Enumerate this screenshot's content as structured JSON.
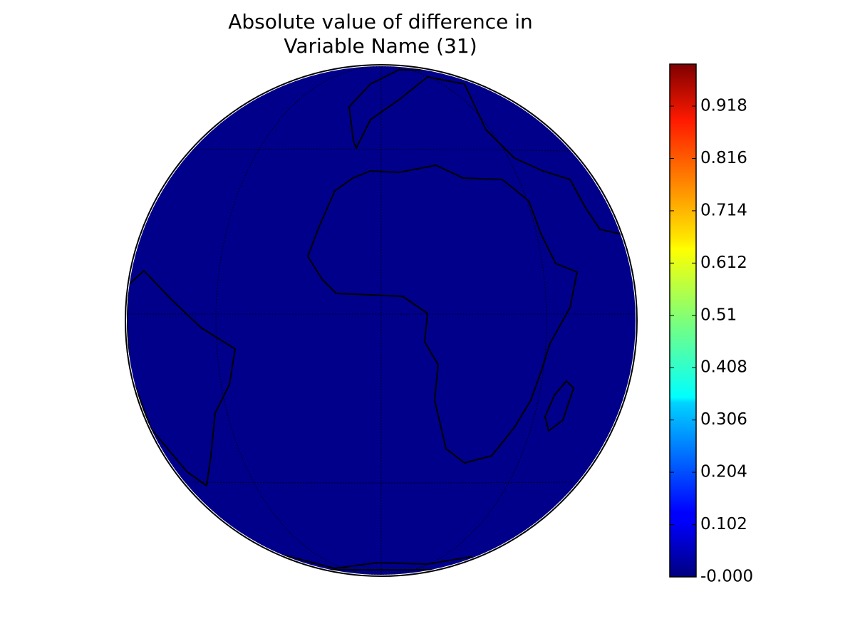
{
  "map": {
    "title": [
      "Absolute value of difference in",
      "Variable Name (31)"
    ],
    "colorbar": {
      "lim": [
        0,
        1.0
      ],
      "ticks": [
        {
          "value": 0,
          "label": "-0.000"
        },
        0.102,
        0.204,
        0.306,
        0.408,
        0.51,
        0.612,
        0.714,
        0.816,
        0.918
      ]
    }
  }
}
